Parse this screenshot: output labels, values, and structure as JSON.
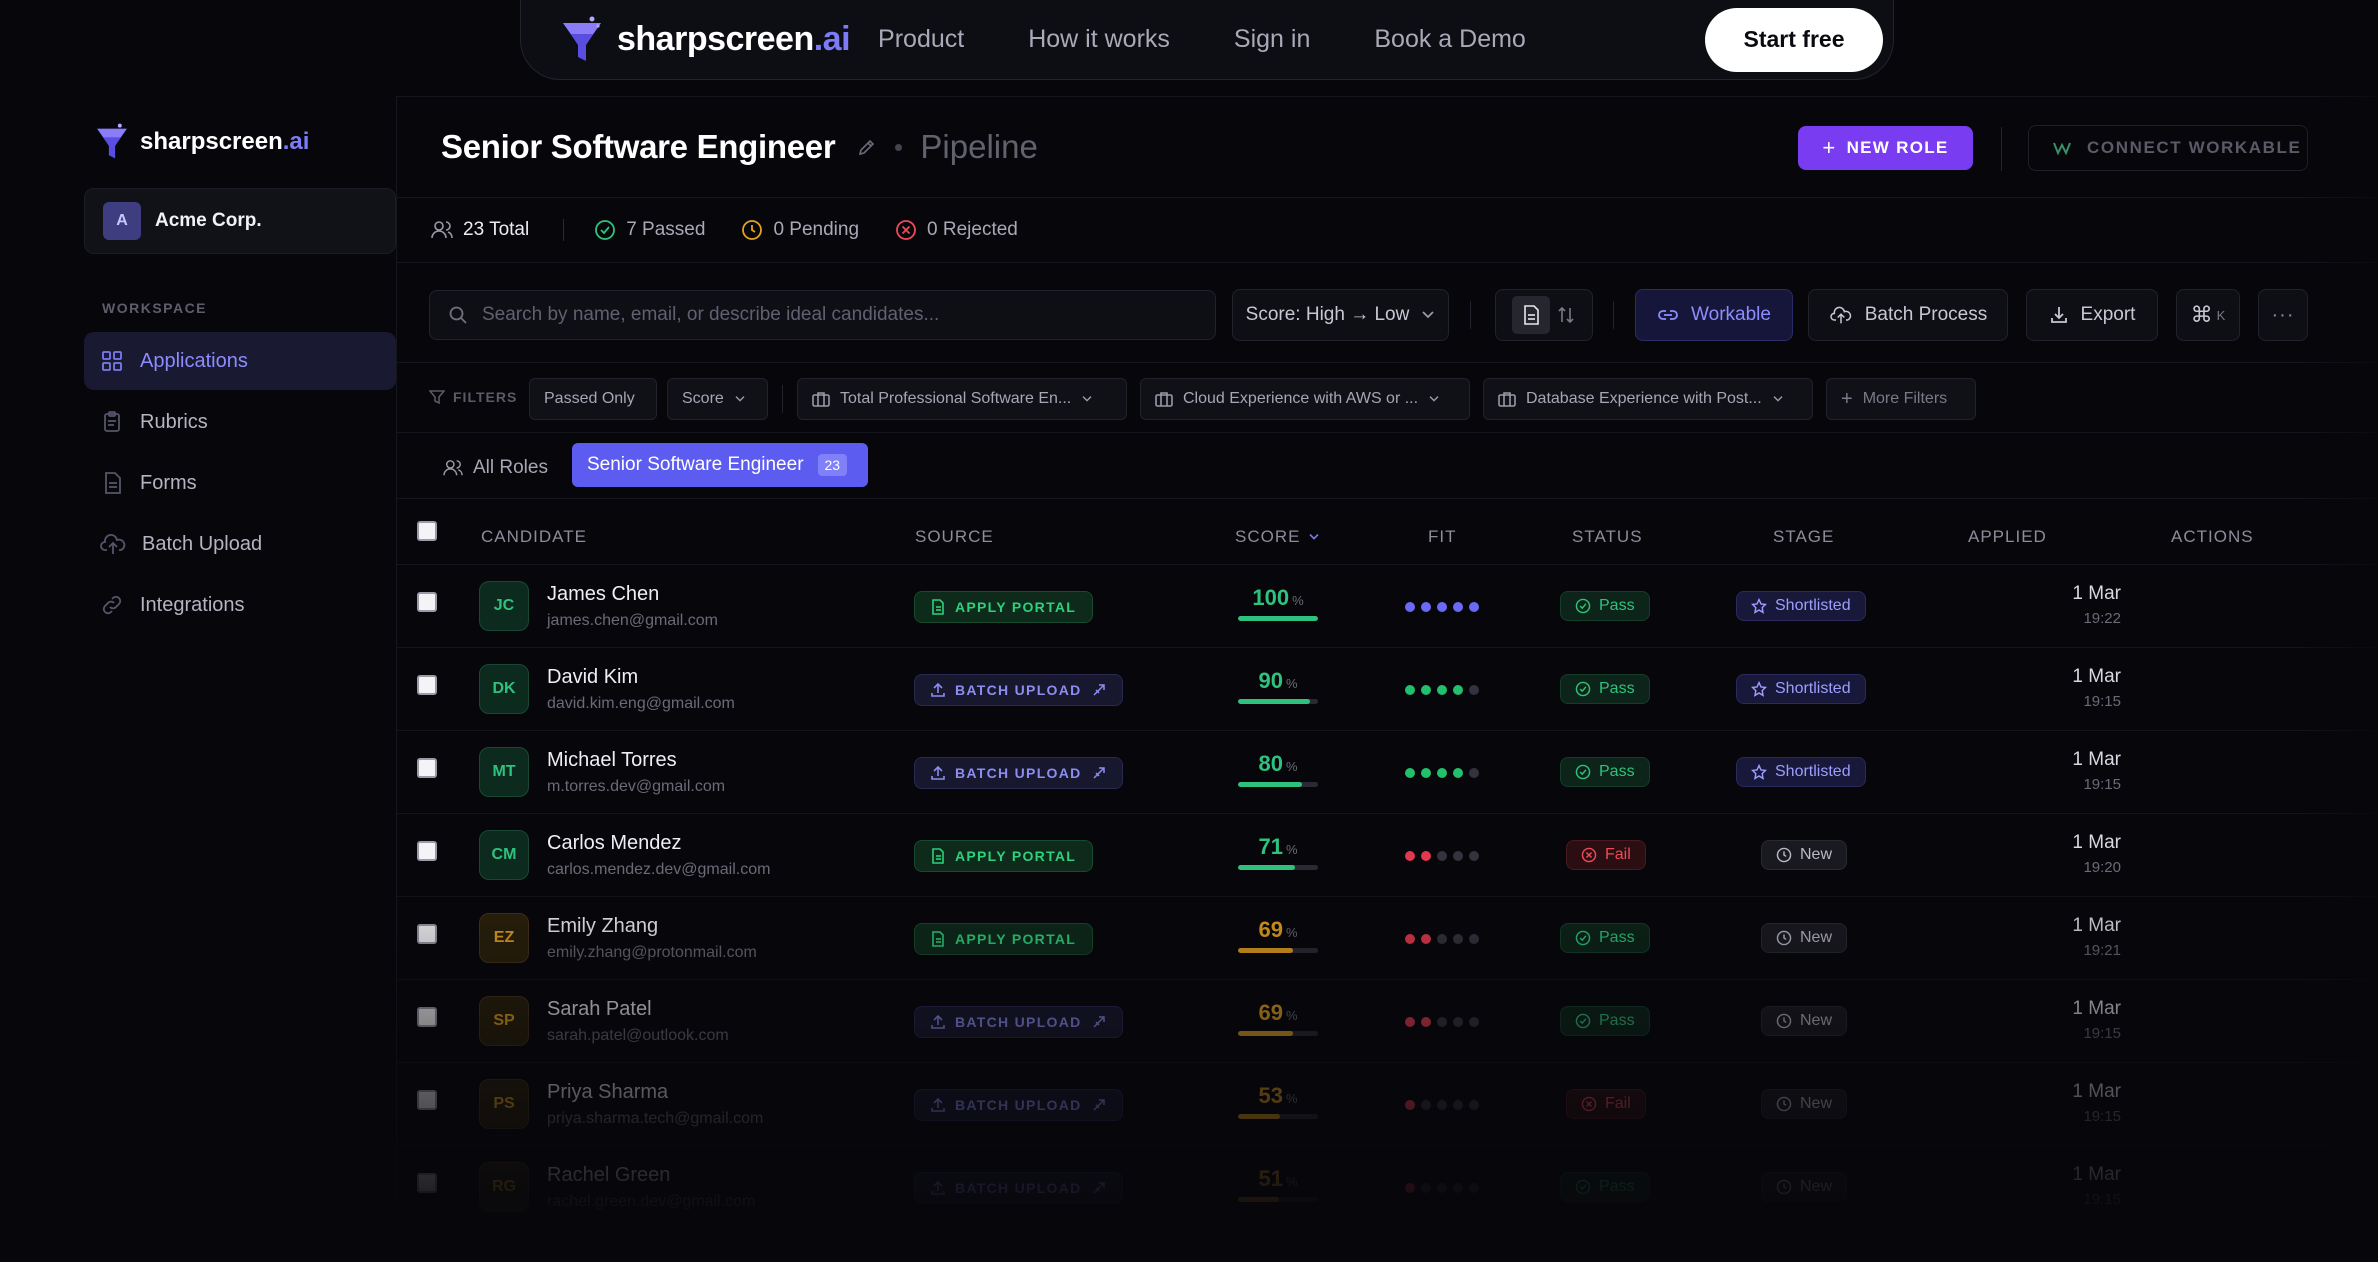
{
  "topnav": {
    "brand_main": "sharpscreen",
    "brand_ai": ".ai",
    "links": [
      "Product",
      "How it works",
      "Sign in",
      "Book a Demo"
    ],
    "cta": "Start free"
  },
  "sidebar": {
    "brand_main": "sharpscreen",
    "brand_ai": ".ai",
    "org_initial": "A",
    "org_name": "Acme Corp.",
    "section": "WORKSPACE",
    "items": [
      {
        "label": "Applications",
        "icon": "grid-icon",
        "active": true
      },
      {
        "label": "Rubrics",
        "icon": "clipboard-icon",
        "active": false
      },
      {
        "label": "Forms",
        "icon": "form-icon",
        "active": false
      },
      {
        "label": "Batch Upload",
        "icon": "cloud-upload-icon",
        "active": false
      },
      {
        "label": "Integrations",
        "icon": "link-icon",
        "active": false
      }
    ]
  },
  "header": {
    "title": "Senior Software Engineer",
    "subtitle": "Pipeline",
    "new_role": "NEW ROLE",
    "connect": "CONNECT WORKABLE"
  },
  "stats": {
    "total": "23 Total",
    "passed": "7 Passed",
    "pending": "0 Pending",
    "rejected": "0 Rejected"
  },
  "toolbar": {
    "search_placeholder": "Search by name, email, or describe ideal candidates...",
    "sort": "Score: High → Low",
    "workable": "Workable",
    "batch": "Batch Process",
    "export": "Export",
    "kbd": "⌘",
    "kbd_key": "K"
  },
  "filters": {
    "label": "FILTERS",
    "passed_only": "Passed Only",
    "score": "Score",
    "f1": "Total Professional Software En...",
    "f2": "Cloud Experience with AWS or ...",
    "f3": "Database Experience with Post...",
    "more": "More Filters"
  },
  "role_tabs": {
    "all": "All Roles",
    "active": "Senior Software Engineer",
    "count": "23"
  },
  "table": {
    "headers": {
      "candidate": "CANDIDATE",
      "source": "SOURCE",
      "score": "SCORE",
      "fit": "FIT",
      "status": "STATUS",
      "stage": "STAGE",
      "applied": "APPLIED",
      "actions": "ACTIONS"
    },
    "rows": [
      {
        "initials": "JC",
        "name": "James Chen",
        "email": "james.chen@gmail.com",
        "source": "APPLY PORTAL",
        "score": "100",
        "fit": 5,
        "status": "Pass",
        "stage": "Shortlisted",
        "date": "1 Mar",
        "time": "19:22",
        "color": "green"
      },
      {
        "initials": "DK",
        "name": "David Kim",
        "email": "david.kim.eng@gmail.com",
        "source": "BATCH UPLOAD",
        "score": "90",
        "fit": 4,
        "status": "Pass",
        "stage": "Shortlisted",
        "date": "1 Mar",
        "time": "19:15",
        "color": "green"
      },
      {
        "initials": "MT",
        "name": "Michael Torres",
        "email": "m.torres.dev@gmail.com",
        "source": "BATCH UPLOAD",
        "score": "80",
        "fit": 4,
        "status": "Pass",
        "stage": "Shortlisted",
        "date": "1 Mar",
        "time": "19:15",
        "color": "green"
      },
      {
        "initials": "CM",
        "name": "Carlos Mendez",
        "email": "carlos.mendez.dev@gmail.com",
        "source": "APPLY PORTAL",
        "score": "71",
        "fit": 2,
        "status": "Fail",
        "stage": "New",
        "date": "1 Mar",
        "time": "19:20",
        "color": "green"
      },
      {
        "initials": "EZ",
        "name": "Emily Zhang",
        "email": "emily.zhang@protonmail.com",
        "source": "APPLY PORTAL",
        "score": "69",
        "fit": 2,
        "status": "Pass",
        "stage": "New",
        "date": "1 Mar",
        "time": "19:21",
        "color": "amber"
      },
      {
        "initials": "SP",
        "name": "Sarah Patel",
        "email": "sarah.patel@outlook.com",
        "source": "BATCH UPLOAD",
        "score": "69",
        "fit": 2,
        "status": "Pass",
        "stage": "New",
        "date": "1 Mar",
        "time": "19:15",
        "color": "amber"
      },
      {
        "initials": "PS",
        "name": "Priya Sharma",
        "email": "priya.sharma.tech@gmail.com",
        "source": "BATCH UPLOAD",
        "score": "53",
        "fit": 1,
        "status": "Fail",
        "stage": "New",
        "date": "1 Mar",
        "time": "19:15",
        "color": "amber"
      },
      {
        "initials": "RG",
        "name": "Rachel Green",
        "email": "rachel.green.dev@gmail.com",
        "source": "BATCH UPLOAD",
        "score": "51",
        "fit": 1,
        "status": "Pass",
        "stage": "New",
        "date": "1 Mar",
        "time": "19:15",
        "color": "amber"
      }
    ]
  },
  "colors": {
    "accent": "#7a3cf0",
    "green": "#2ec27e",
    "amber": "#e3a11e",
    "red": "#ee4a5a",
    "fit_blue": "#6a6af8",
    "fit_green": "#22c06c",
    "fit_red": "#e0384e"
  }
}
